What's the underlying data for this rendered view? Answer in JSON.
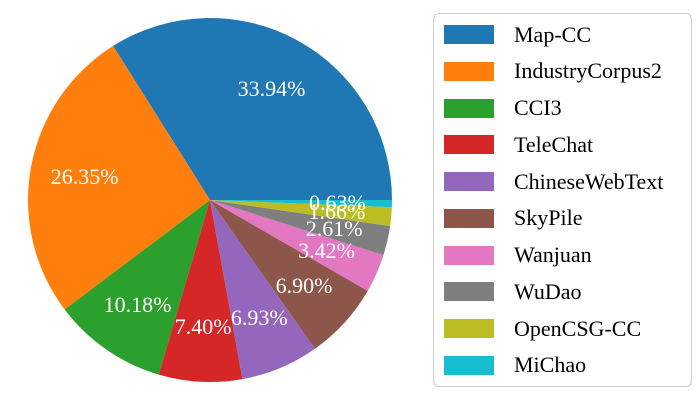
{
  "figure": {
    "background": "#ffffff",
    "text_color": "#000000",
    "pct_label_color": "#ffffff",
    "legend_border_color": "#cccccc"
  },
  "chart_data": {
    "type": "pie",
    "title": "",
    "start_angle_deg": 0,
    "direction": "counterclockwise",
    "legend_position": "right",
    "labels_show_percent": true,
    "slices": [
      {
        "name": "Map-CC",
        "value": 33.94,
        "label": "33.94%",
        "color": "#1f77b4"
      },
      {
        "name": "IndustryCorpus2",
        "value": 26.35,
        "label": "26.35%",
        "color": "#ff7f0e"
      },
      {
        "name": "CCI3",
        "value": 10.18,
        "label": "10.18%",
        "color": "#2ca02c"
      },
      {
        "name": "TeleChat",
        "value": 7.4,
        "label": "7.40%",
        "color": "#d62728"
      },
      {
        "name": "ChineseWebText",
        "value": 6.93,
        "label": "6.93%",
        "color": "#9467bd"
      },
      {
        "name": "SkyPile",
        "value": 6.9,
        "label": "6.90%",
        "color": "#8c564b"
      },
      {
        "name": "Wanjuan",
        "value": 3.42,
        "label": "3.42%",
        "color": "#e377c2"
      },
      {
        "name": "WuDao",
        "value": 2.61,
        "label": "2.61%",
        "color": "#7f7f7f"
      },
      {
        "name": "OpenCSG-CC",
        "value": 1.66,
        "label": "1.66%",
        "color": "#bcbd22"
      },
      {
        "name": "MiChao",
        "value": 0.63,
        "label": "0.63%",
        "color": "#17becf"
      }
    ]
  }
}
